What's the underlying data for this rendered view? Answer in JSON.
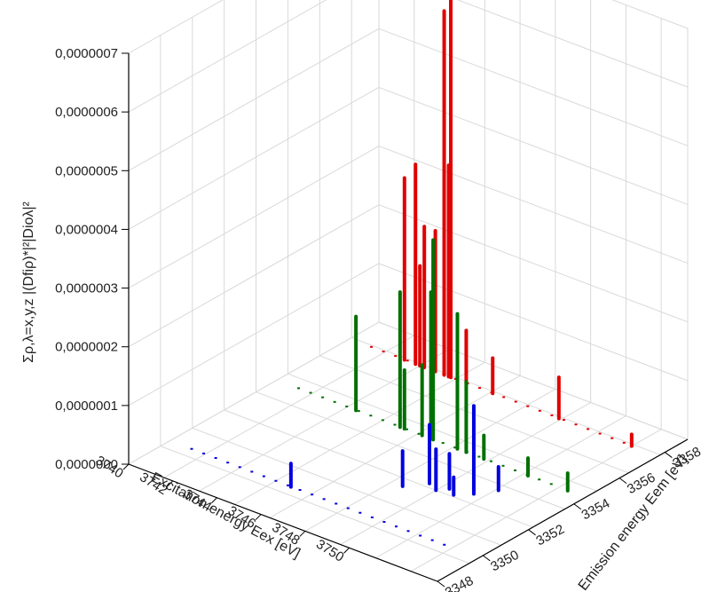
{
  "chart_data": {
    "type": "3d-bar",
    "zlabel": "Σρ,λ=x,y,z |(Dfiρ)*|²|Dioλ|²",
    "xlabel": "Excitation energy Eex [eV]",
    "ylabel": "Emission energy Eem [eV]",
    "zlim": [
      0,
      7e-07
    ],
    "z_ticks": [
      "0,0000000",
      "0,0000001",
      "0,0000002",
      "0,0000003",
      "0,0000004",
      "0,0000005",
      "0,0000006",
      "0,0000007"
    ],
    "x_ticks": [
      "3740",
      "3742",
      "3744",
      "3746",
      "3748",
      "3750"
    ],
    "y_ticks": [
      "3348",
      "3350",
      "3352",
      "3354",
      "3356",
      "3358"
    ],
    "grid": true,
    "series": [
      {
        "color": "#e00000",
        "bars": [
          [
            3742.5,
            3357.7,
            3.1e-07
          ],
          [
            3743.0,
            3357.7,
            3.4e-07
          ],
          [
            3743.4,
            3357.7,
            2.4e-07
          ],
          [
            3743.9,
            3357.7,
            2.4e-07
          ],
          [
            3744.3,
            3357.7,
            6.2e-07
          ],
          [
            3744.6,
            3357.7,
            6.7e-07
          ],
          [
            3744.5,
            3357.7,
            3.6e-07
          ],
          [
            3743.2,
            3357.7,
            1.7e-07
          ],
          [
            3745.3,
            3357.7,
            9e-08
          ],
          [
            3746.5,
            3357.7,
            6e-08
          ],
          [
            3749.5,
            3357.7,
            7e-08
          ],
          [
            3752.8,
            3357.7,
            2e-08
          ]
        ]
      },
      {
        "color": "#007000",
        "bars": [
          [
            3743.6,
            3354.5,
            1.6e-07
          ],
          [
            3745.6,
            3354.5,
            2.3e-07
          ],
          [
            3747.0,
            3354.5,
            2.5e-07
          ],
          [
            3747.1,
            3354.5,
            3.4e-07
          ],
          [
            3748.2,
            3354.5,
            2.3e-07
          ],
          [
            3748.6,
            3354.5,
            1.2e-07
          ],
          [
            3745.8,
            3354.5,
            1e-07
          ],
          [
            3746.6,
            3354.5,
            1.2e-07
          ],
          [
            3749.4,
            3354.5,
            4e-08
          ],
          [
            3753.2,
            3354.5,
            3e-08
          ],
          [
            3751.4,
            3354.5,
            3e-08
          ]
        ]
      },
      {
        "color": "#0000e0",
        "bars": [
          [
            3745.5,
            3349.8,
            4e-08
          ],
          [
            3748.5,
            3351.8,
            6e-08
          ],
          [
            3749.1,
            3352.4,
            1e-07
          ],
          [
            3749.6,
            3352.2,
            7e-08
          ],
          [
            3749.9,
            3352.5,
            6e-08
          ],
          [
            3750.8,
            3352.7,
            1.5e-07
          ],
          [
            3751.3,
            3353.3,
            4e-08
          ],
          [
            3750.3,
            3352.3,
            3e-08
          ]
        ]
      }
    ]
  }
}
